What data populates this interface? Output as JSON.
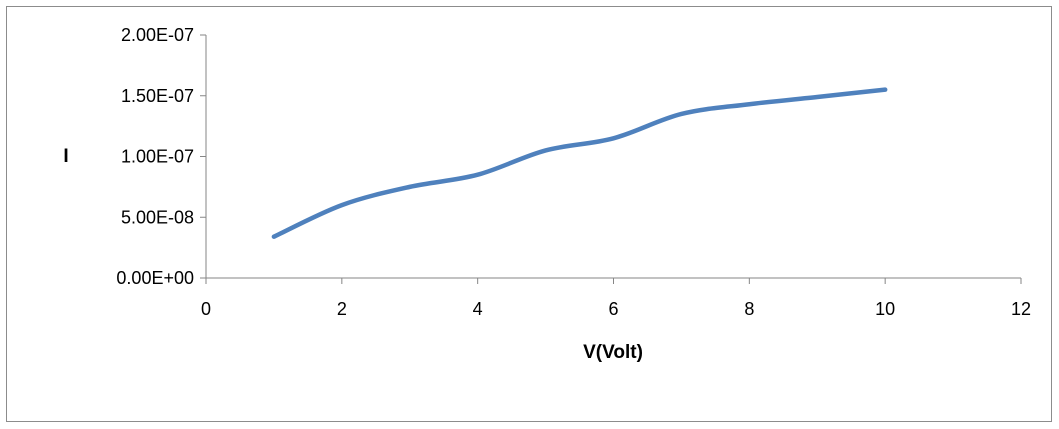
{
  "chart_data": {
    "type": "line",
    "xlabel": "V(Volt)",
    "ylabel": "I",
    "xlim": [
      0,
      12
    ],
    "ylim": [
      0,
      2e-07
    ],
    "xticks": [
      0,
      2,
      4,
      6,
      8,
      10,
      12
    ],
    "xtick_labels": [
      "0",
      "2",
      "4",
      "6",
      "8",
      "10",
      "12"
    ],
    "yticks": [
      0,
      5e-08,
      1e-07,
      1.5e-07,
      2e-07
    ],
    "ytick_labels": [
      "0.00E+00",
      "5.00E-08",
      "1.00E-07",
      "1.50E-07",
      "2.00E-07"
    ],
    "grid": false,
    "smooth": true,
    "series": [
      {
        "x": [
          1,
          2,
          3,
          4,
          5,
          6,
          7,
          8,
          9,
          10
        ],
        "y": [
          3.4e-08,
          6e-08,
          7.5e-08,
          8.5e-08,
          1.05e-07,
          1.15e-07,
          1.35e-07,
          1.43e-07,
          1.49e-07,
          1.55e-07
        ],
        "color": "#4f81bd"
      }
    ]
  }
}
